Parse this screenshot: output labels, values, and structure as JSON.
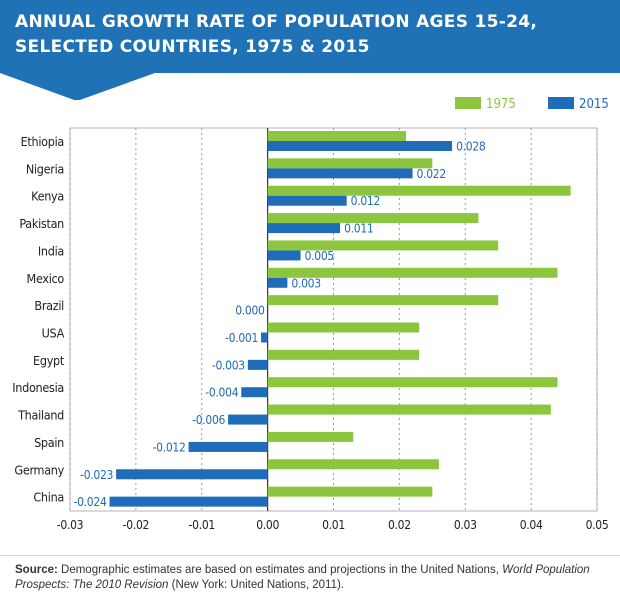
{
  "header": {
    "title": "ANNUAL GROWTH RATE OF POPULATION AGES 15-24,\nSELECTED COUNTRIES, 1975 & 2015"
  },
  "colors": {
    "banner": "#1f72b5",
    "banner_dark": "#185f99",
    "s1975": "#8cc63f",
    "s2015": "#1f6db8",
    "grid": "#999999"
  },
  "chart_data": {
    "type": "bar",
    "orientation": "horizontal",
    "categories": [
      "Ethiopia",
      "Nigeria",
      "Kenya",
      "Pakistan",
      "India",
      "Mexico",
      "Brazil",
      "USA",
      "Egypt",
      "Indonesia",
      "Thailand",
      "Spain",
      "Germany",
      "China"
    ],
    "series": [
      {
        "name": "1975",
        "color": "#8cc63f",
        "values": [
          0.021,
          0.025,
          0.046,
          0.032,
          0.035,
          0.044,
          0.035,
          0.023,
          0.023,
          0.044,
          0.043,
          0.013,
          0.026,
          0.025
        ]
      },
      {
        "name": "2015",
        "color": "#1f6db8",
        "values": [
          0.028,
          0.022,
          0.012,
          0.011,
          0.005,
          0.003,
          0.0,
          -0.001,
          -0.003,
          -0.004,
          -0.006,
          -0.012,
          -0.023,
          -0.024
        ],
        "labels": [
          "0.028",
          "0.022",
          "0.012",
          "0.011",
          "0.005",
          "0.003",
          "0.000",
          "-0.001",
          "-0.003",
          "-0.004",
          "-0.006",
          "-0.012",
          "-0.023",
          "-0.024"
        ]
      }
    ],
    "xlim": [
      -0.03,
      0.05
    ],
    "xticks": [
      -0.03,
      -0.02,
      -0.01,
      0.0,
      0.01,
      0.02,
      0.03,
      0.04,
      0.05
    ],
    "xtick_labels": [
      "-0.03",
      "-0.02",
      "-0.01",
      "0.00",
      "0.01",
      "0.02",
      "0.03",
      "0.04",
      "0.05"
    ],
    "grid": "vertical dashed",
    "legend": "top-right"
  },
  "source": {
    "label": "Source:",
    "text_1": " Demographic estimates are based on estimates and projections in the United Nations, ",
    "italic": "World Population Prospects: The 2010 Revision",
    "text_2": " (New York: United Nations, 2011)."
  }
}
